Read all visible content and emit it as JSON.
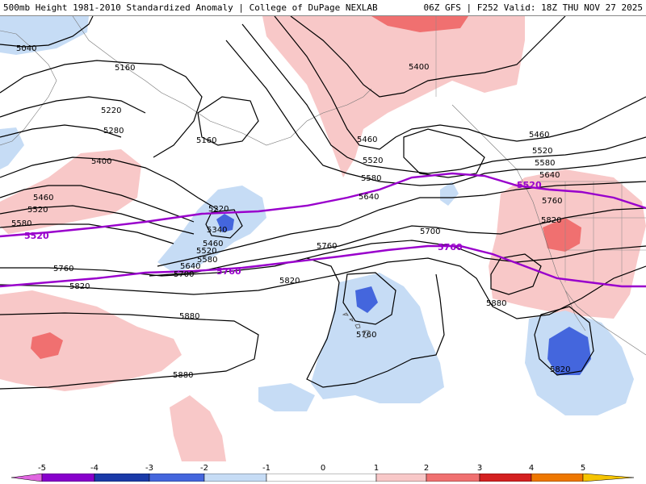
{
  "header": {
    "title": "500mb Height 1981-2010 Standardized Anomaly | College of DuPage NEXLAB",
    "run_info": "06Z GFS | F252 Valid: 18Z THU NOV 27 2025"
  },
  "map": {
    "contour_interval": 60,
    "black_contour_labels": [
      "5040",
      "5160",
      "5220",
      "5280",
      "5160",
      "5400",
      "5460",
      "5520",
      "5580",
      "5220",
      "5340",
      "5460",
      "5520",
      "5580",
      "5640",
      "5700",
      "5760",
      "5820",
      "5880",
      "5880",
      "5400",
      "5460",
      "5520",
      "5580",
      "5640",
      "5700",
      "5760",
      "5820",
      "5760",
      "5460",
      "5520",
      "5580",
      "5640",
      "5760",
      "5820",
      "5880",
      "5820"
    ],
    "purple_contour_labels": [
      "5520",
      "5760",
      "5520",
      "5760"
    ],
    "anomaly_colors": {
      "neg5": "#e066e0",
      "neg4": "#8800cc",
      "neg3": "#1a3aa8",
      "neg2": "#4466dd",
      "neg1": "#c6dcf5",
      "zero": "#ffffff",
      "pos1": "#f8c8c8",
      "pos2": "#f07070",
      "pos3": "#d42020",
      "pos4": "#ee7700",
      "pos5": "#f5c400"
    },
    "contour_color": "#000000",
    "highlight_contour_color": "#9900cc"
  },
  "colorbar": {
    "ticks": [
      "-5",
      "-4",
      "-3",
      "-2",
      "-1",
      "0",
      "1",
      "2",
      "3",
      "4",
      "5"
    ]
  }
}
